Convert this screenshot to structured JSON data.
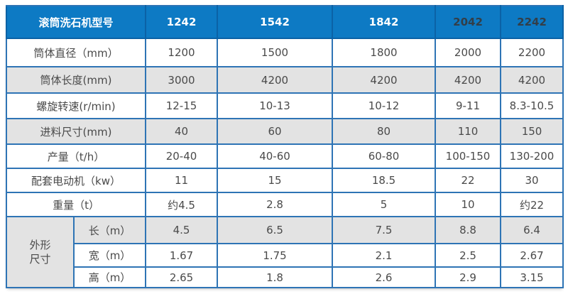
{
  "table": {
    "header": {
      "label": "滚筒洗石机型号",
      "models": [
        {
          "label": "1242",
          "dark": false
        },
        {
          "label": "1542",
          "dark": false
        },
        {
          "label": "1842",
          "dark": false
        },
        {
          "label": "2042",
          "dark": true
        },
        {
          "label": "2242",
          "dark": true
        }
      ]
    },
    "rows": [
      {
        "label": "筒体直径（mm）",
        "values": [
          "1200",
          "1500",
          "1800",
          "2000",
          "2200"
        ],
        "shaded": false
      },
      {
        "label": "筒体长度(mm)",
        "values": [
          "3000",
          "4200",
          "4200",
          "4200",
          "4200"
        ],
        "shaded": true
      },
      {
        "label": "螺旋转速(r/min)",
        "values": [
          "12-15",
          "10-13",
          "10-12",
          "9-11",
          "8.3-10.5"
        ],
        "shaded": false
      },
      {
        "label": "进料尺寸(mm)",
        "values": [
          "40",
          "60",
          "80",
          "110",
          "150"
        ],
        "shaded": true
      },
      {
        "label": "产量（t/h）",
        "values": [
          "20-40",
          "40-60",
          "60-80",
          "100-150",
          "130-200"
        ],
        "shaded": false
      },
      {
        "label": "配套电动机（kw）",
        "values": [
          "11",
          "15",
          "18.5",
          "22",
          "30"
        ],
        "shaded": false
      },
      {
        "label": "重量（t）",
        "values": [
          "约4.5",
          "2.8",
          "5",
          "10",
          "约22"
        ],
        "shaded": false
      }
    ],
    "dimension_section": {
      "label": "外形尺寸",
      "label_lines": [
        "外形",
        "尺寸"
      ],
      "rows": [
        {
          "label": "长（m）",
          "values": [
            "4.5",
            "6.5",
            "7.5",
            "8.8",
            "6.4"
          ],
          "shaded": true
        },
        {
          "label": "宽（m）",
          "values": [
            "1.67",
            "1.75",
            "2.1",
            "2.5",
            "2.67"
          ],
          "shaded": false
        },
        {
          "label": "高（m）",
          "values": [
            "2.65",
            "1.8",
            "2.6",
            "2.9",
            "3.15"
          ],
          "shaded": false
        }
      ]
    },
    "colors": {
      "header_bg": "#0d7ac4",
      "header_text": "#ffffff",
      "header_text_dark": "#333e48",
      "header_border": "#0b62a6",
      "border": "#2e74b5",
      "shaded_bg": "#e3e3e3",
      "row_bg": "#ffffff",
      "body_text": "#4a4a4a"
    }
  }
}
